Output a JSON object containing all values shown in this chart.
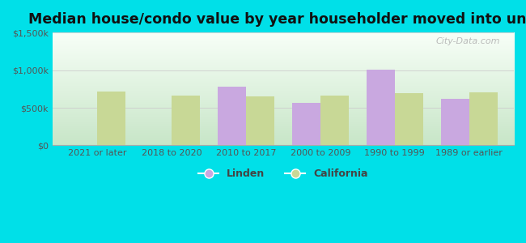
{
  "title": "Median house/condo value by year householder moved into unit",
  "categories": [
    "2021 or later",
    "2018 to 2020",
    "2010 to 2017",
    "2000 to 2009",
    "1990 to 1999",
    "1989 or earlier"
  ],
  "linden_values": [
    null,
    null,
    780000,
    560000,
    1010000,
    620000
  ],
  "california_values": [
    720000,
    660000,
    650000,
    660000,
    690000,
    710000
  ],
  "linden_color": "#c9a8e0",
  "california_color": "#c8d896",
  "background_outer": "#00e0e8",
  "ylim": [
    0,
    1500000
  ],
  "yticks": [
    0,
    500000,
    1000000,
    1500000
  ],
  "ytick_labels": [
    "$0",
    "$500k",
    "$1,000k",
    "$1,500k"
  ],
  "legend_linden": "Linden",
  "legend_california": "California",
  "watermark": "City-Data.com",
  "bar_width": 0.38,
  "title_fontsize": 12.5,
  "tick_fontsize": 8,
  "legend_fontsize": 9
}
